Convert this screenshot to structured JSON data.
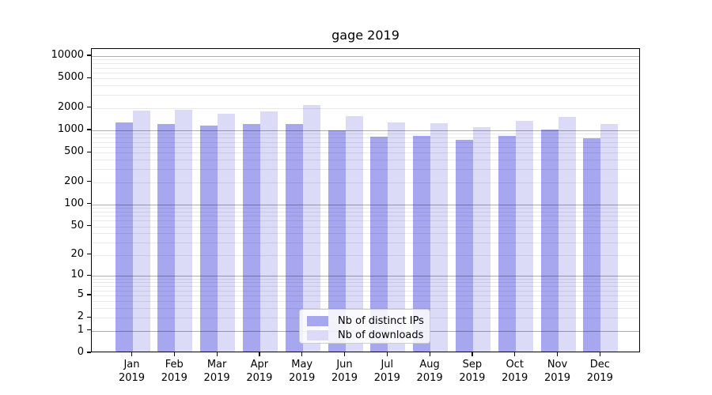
{
  "chart_data": {
    "type": "bar",
    "title": "gage 2019",
    "categories": [
      "Jan 2019",
      "Feb 2019",
      "Mar 2019",
      "Apr 2019",
      "May 2019",
      "Jun 2019",
      "Jul 2019",
      "Aug 2019",
      "Sep 2019",
      "Oct 2019",
      "Nov 2019",
      "Dec 2019"
    ],
    "series": [
      {
        "name": "Nb of distinct IPs",
        "color": "#a7a7f0",
        "values": [
          1220,
          1160,
          1100,
          1150,
          1160,
          960,
          780,
          810,
          715,
          810,
          985,
          750
        ]
      },
      {
        "name": "Nb of downloads",
        "color": "#dbdbf8",
        "values": [
          1760,
          1810,
          1590,
          1700,
          2080,
          1490,
          1215,
          1190,
          1060,
          1280,
          1460,
          1160
        ]
      }
    ],
    "yticks": [
      0,
      1,
      2,
      5,
      10,
      20,
      50,
      100,
      200,
      500,
      1000,
      2000,
      5000,
      10000
    ],
    "yscale": "log1p",
    "ylim": [
      0,
      12500
    ],
    "grid": "major and minor horizontal gridlines, drawn above bars",
    "legend_position": "lower center"
  }
}
